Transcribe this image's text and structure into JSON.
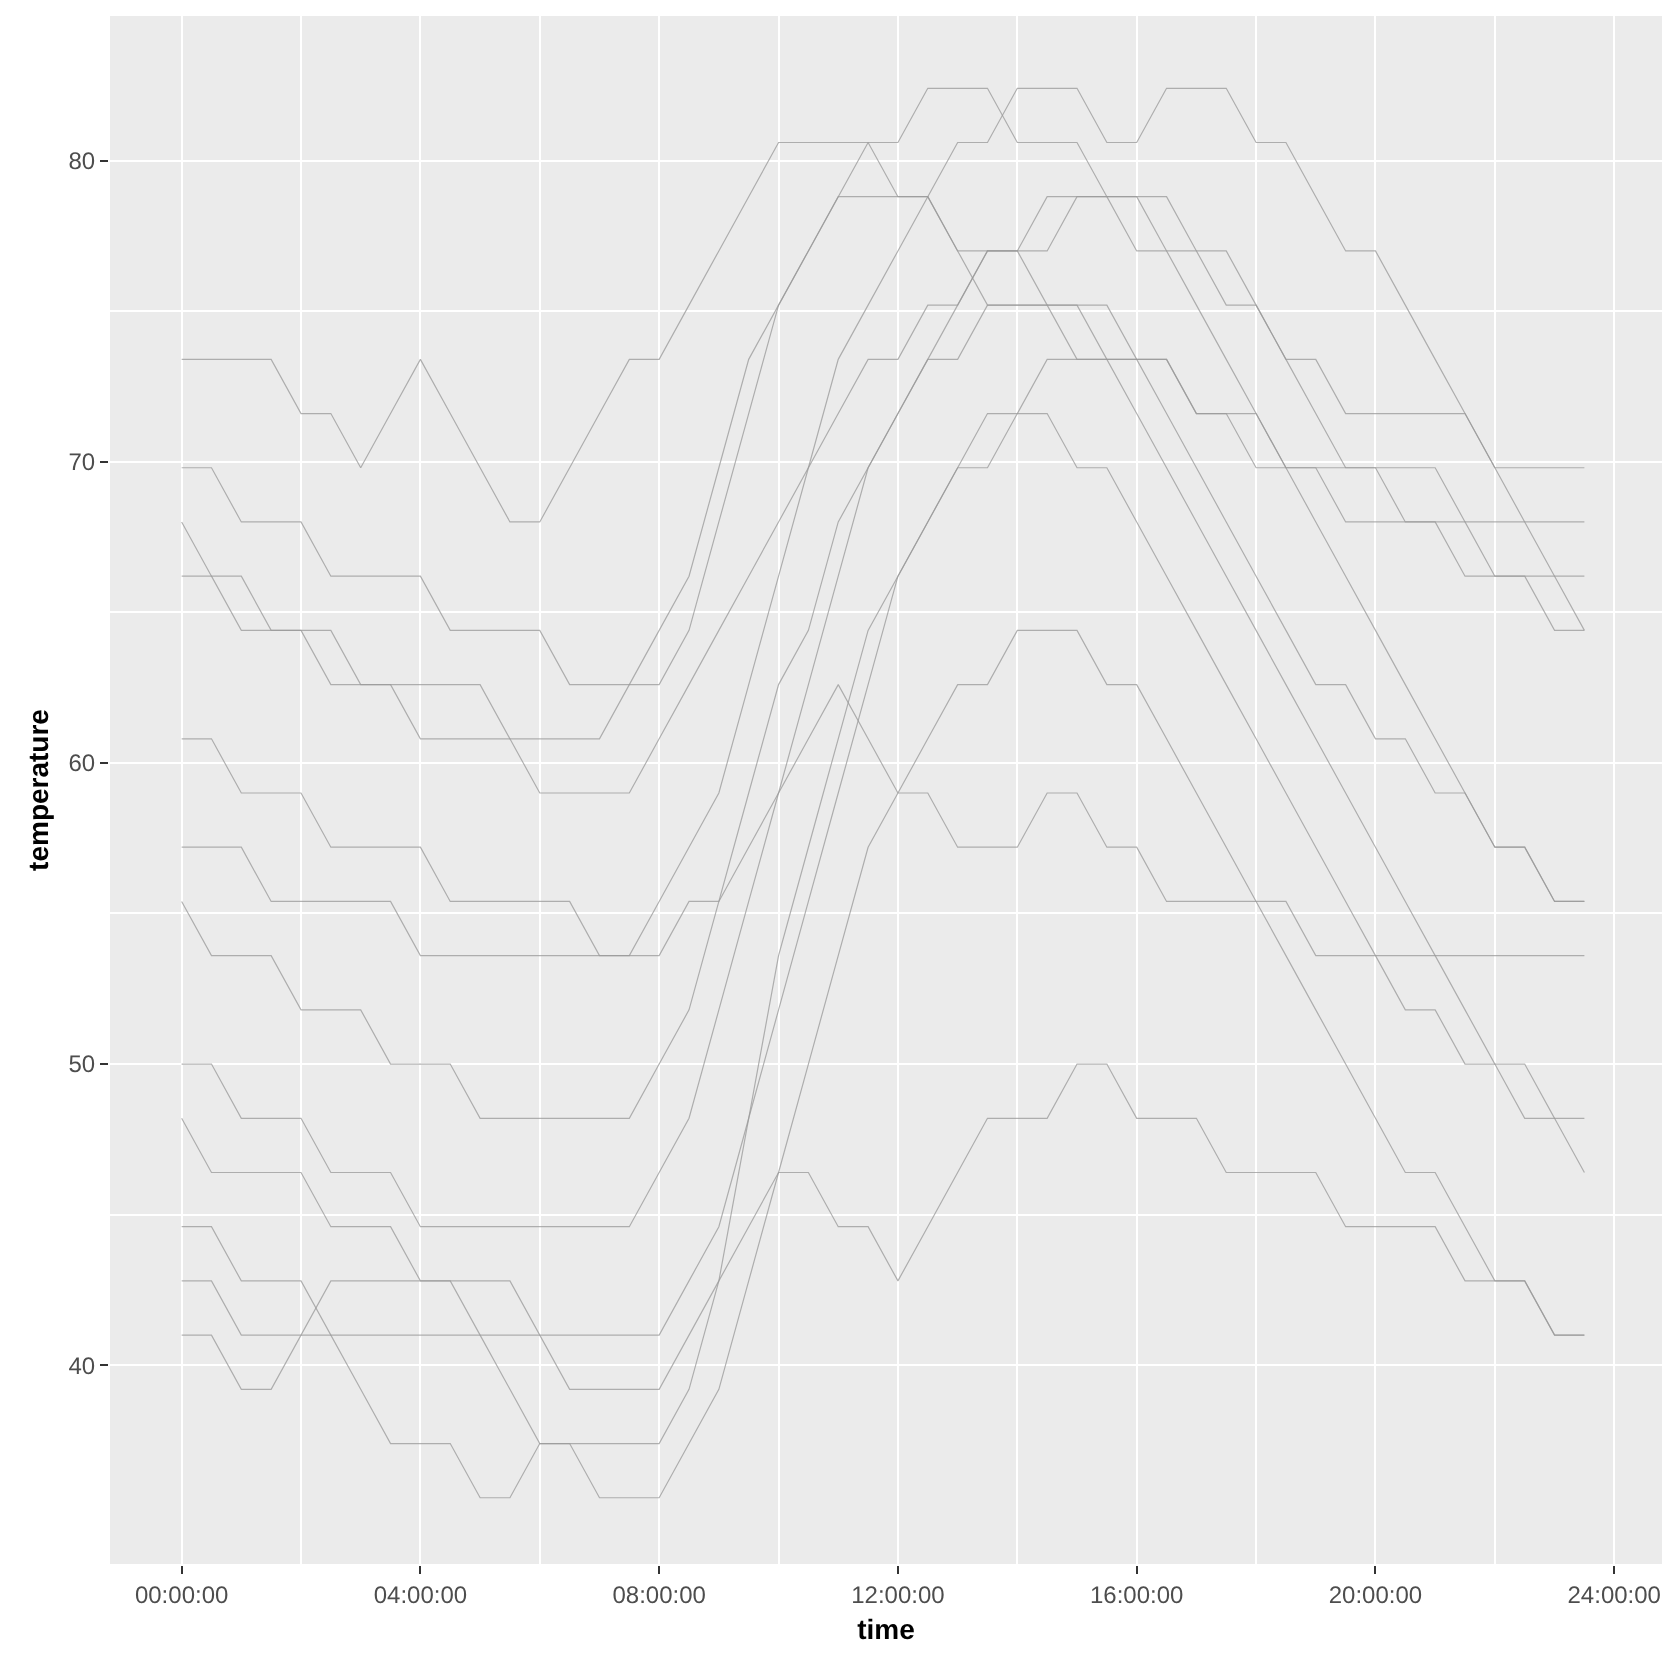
{
  "chart_data": {
    "type": "line",
    "xlabel": "time",
    "ylabel": "temperature",
    "x": [
      0,
      0.5,
      1,
      1.5,
      2,
      2.5,
      3,
      3.5,
      4,
      4.5,
      5,
      5.5,
      6,
      6.5,
      7,
      7.5,
      8,
      8.5,
      9,
      9.5,
      10,
      10.5,
      11,
      11.5,
      12,
      12.5,
      13,
      13.5,
      14,
      14.5,
      15,
      15.5,
      16,
      16.5,
      17,
      17.5,
      18,
      18.5,
      19,
      19.5,
      20,
      20.5,
      21,
      21.5,
      22,
      22.5,
      23,
      23.5
    ],
    "xlim": [
      -1.2,
      24.8
    ],
    "xticks": [
      {
        "value": 0,
        "label": "00:00:00"
      },
      {
        "value": 4,
        "label": "04:00:00"
      },
      {
        "value": 8,
        "label": "08:00:00"
      },
      {
        "value": 12,
        "label": "12:00:00"
      },
      {
        "value": 16,
        "label": "16:00:00"
      },
      {
        "value": 20,
        "label": "20:00:00"
      },
      {
        "value": 24,
        "label": "24:00:00"
      }
    ],
    "ylim": [
      33.4,
      84.8
    ],
    "yticks": [
      40,
      50,
      60,
      70,
      80
    ],
    "grid": true,
    "marker": "none",
    "line_style": "solid",
    "series": [
      {
        "color": "#999999",
        "values": [
          60.8,
          60.8,
          59,
          59,
          59,
          57.2,
          57.2,
          57.2,
          57.2,
          55.4,
          55.4,
          55.4,
          55.4,
          55.4,
          53.6,
          53.6,
          55.4,
          57.2,
          59,
          62.6,
          66.2,
          69.8,
          73.4,
          75.2,
          77,
          78.8,
          80.6,
          80.6,
          82.4,
          82.4,
          82.4,
          80.6,
          80.6,
          82.4,
          82.4,
          82.4,
          80.6,
          80.6,
          78.8,
          77,
          77,
          75.2,
          73.4,
          71.6,
          69.8,
          68,
          66.2,
          64.4
        ]
      },
      {
        "color": "#999999",
        "values": [
          41,
          41,
          39.2,
          39.2,
          41,
          41,
          39.2,
          37.4,
          37.4,
          37.4,
          35.6,
          35.6,
          37.4,
          37.4,
          35.6,
          35.6,
          35.6,
          37.4,
          39.2,
          42.8,
          46.4,
          50,
          53.6,
          57.2,
          59,
          60.8,
          62.6,
          62.6,
          64.4,
          64.4,
          64.4,
          62.6,
          62.6,
          60.8,
          59,
          57.2,
          55.4,
          53.6,
          51.8,
          50,
          48.2,
          46.4,
          46.4,
          44.6,
          42.8,
          42.8,
          41,
          41
        ]
      },
      {
        "color": "#999999",
        "values": [
          50,
          50,
          48.2,
          48.2,
          48.2,
          46.4,
          46.4,
          46.4,
          44.6,
          44.6,
          44.6,
          44.6,
          44.6,
          44.6,
          44.6,
          44.6,
          46.4,
          48.2,
          51.8,
          55.4,
          59,
          62.6,
          66.2,
          69.8,
          71.6,
          73.4,
          75.2,
          77,
          77,
          78.8,
          78.8,
          78.8,
          77,
          77,
          75.2,
          73.4,
          71.6,
          69.8,
          68,
          66.2,
          64.4,
          62.6,
          60.8,
          59,
          57.2,
          57.2,
          55.4,
          55.4
        ]
      },
      {
        "color": "#999999",
        "values": [
          44.6,
          44.6,
          42.8,
          42.8,
          42.8,
          41,
          41,
          41,
          41,
          41,
          41,
          41,
          41,
          39.2,
          39.2,
          39.2,
          39.2,
          41,
          42.8,
          44.6,
          46.4,
          46.4,
          44.6,
          44.6,
          42.8,
          44.6,
          46.4,
          48.2,
          48.2,
          48.2,
          50,
          50,
          48.2,
          48.2,
          48.2,
          46.4,
          46.4,
          46.4,
          46.4,
          44.6,
          44.6,
          44.6,
          44.6,
          42.8,
          42.8,
          42.8,
          41,
          41
        ]
      },
      {
        "color": "#999999",
        "values": [
          73.4,
          73.4,
          73.4,
          73.4,
          71.6,
          71.6,
          69.8,
          71.6,
          73.4,
          71.6,
          69.8,
          68,
          68,
          69.8,
          71.6,
          73.4,
          73.4,
          75.2,
          77,
          78.8,
          80.6,
          80.6,
          80.6,
          80.6,
          78.8,
          78.8,
          77,
          75.2,
          75.2,
          75.2,
          75.2,
          75.2,
          73.4,
          73.4,
          71.6,
          71.6,
          69.8,
          69.8,
          69.8,
          68,
          68,
          68,
          68,
          68,
          66.2,
          66.2,
          64.4,
          64.4
        ]
      },
      {
        "color": "#999999",
        "values": [
          68,
          66.2,
          66.2,
          64.4,
          64.4,
          62.6,
          62.6,
          62.6,
          60.8,
          60.8,
          60.8,
          60.8,
          59,
          59,
          59,
          59,
          60.8,
          62.6,
          64.4,
          66.2,
          68,
          69.8,
          71.6,
          73.4,
          73.4,
          75.2,
          75.2,
          77,
          77,
          77,
          78.8,
          78.8,
          78.8,
          77,
          77,
          75.2,
          75.2,
          73.4,
          73.4,
          71.6,
          71.6,
          71.6,
          71.6,
          71.6,
          69.8,
          69.8,
          69.8,
          69.8
        ]
      },
      {
        "color": "#999999",
        "values": [
          55.4,
          53.6,
          53.6,
          53.6,
          51.8,
          51.8,
          51.8,
          50,
          50,
          50,
          48.2,
          48.2,
          48.2,
          48.2,
          48.2,
          48.2,
          50,
          51.8,
          55.4,
          59,
          62.6,
          64.4,
          68,
          69.8,
          71.6,
          73.4,
          73.4,
          75.2,
          75.2,
          75.2,
          73.4,
          73.4,
          73.4,
          71.6,
          69.8,
          68,
          66.2,
          64.4,
          62.6,
          62.6,
          60.8,
          60.8,
          59,
          59,
          57.2,
          57.2,
          55.4,
          55.4
        ]
      },
      {
        "color": "#999999",
        "values": [
          57.2,
          57.2,
          57.2,
          55.4,
          55.4,
          55.4,
          55.4,
          55.4,
          53.6,
          53.6,
          53.6,
          53.6,
          53.6,
          53.6,
          53.6,
          53.6,
          53.6,
          55.4,
          55.4,
          57.2,
          59,
          60.8,
          62.6,
          60.8,
          59,
          59,
          57.2,
          57.2,
          57.2,
          59,
          59,
          57.2,
          57.2,
          55.4,
          55.4,
          55.4,
          55.4,
          55.4,
          53.6,
          53.6,
          53.6,
          53.6,
          53.6,
          53.6,
          53.6,
          53.6,
          53.6,
          53.6
        ]
      },
      {
        "color": "#999999",
        "values": [
          48.2,
          46.4,
          46.4,
          46.4,
          46.4,
          44.6,
          44.6,
          44.6,
          42.8,
          42.8,
          42.8,
          42.8,
          41,
          41,
          41,
          41,
          41,
          42.8,
          44.6,
          48.2,
          51.8,
          55.4,
          59,
          62.6,
          66.2,
          68,
          69.8,
          71.6,
          71.6,
          73.4,
          73.4,
          73.4,
          71.6,
          69.8,
          68,
          66.2,
          64.4,
          62.6,
          60.8,
          59,
          57.2,
          55.4,
          53.6,
          51.8,
          50,
          50,
          48.2,
          48.2
        ]
      },
      {
        "color": "#999999",
        "values": [
          66.2,
          66.2,
          64.4,
          64.4,
          64.4,
          64.4,
          62.6,
          62.6,
          62.6,
          62.6,
          62.6,
          60.8,
          60.8,
          60.8,
          60.8,
          62.6,
          64.4,
          66.2,
          69.8,
          73.4,
          75.2,
          77,
          78.8,
          80.6,
          80.6,
          82.4,
          82.4,
          82.4,
          80.6,
          80.6,
          80.6,
          78.8,
          78.8,
          78.8,
          77,
          77,
          75.2,
          73.4,
          71.6,
          69.8,
          69.8,
          68,
          68,
          66.2,
          66.2,
          66.2,
          66.2,
          66.2
        ]
      },
      {
        "color": "#999999",
        "values": [
          42.8,
          42.8,
          41,
          41,
          41,
          42.8,
          42.8,
          42.8,
          42.8,
          42.8,
          41,
          39.2,
          37.4,
          37.4,
          37.4,
          37.4,
          37.4,
          39.2,
          42.8,
          48.2,
          53.6,
          57.2,
          60.8,
          64.4,
          66.2,
          68,
          69.8,
          69.8,
          71.6,
          71.6,
          69.8,
          69.8,
          68,
          66.2,
          64.4,
          62.6,
          60.8,
          59,
          57.2,
          55.4,
          53.6,
          51.8,
          51.8,
          50,
          50,
          48.2,
          48.2,
          46.4
        ]
      },
      {
        "color": "#999999",
        "values": [
          69.8,
          69.8,
          68,
          68,
          68,
          66.2,
          66.2,
          66.2,
          66.2,
          64.4,
          64.4,
          64.4,
          64.4,
          62.6,
          62.6,
          62.6,
          62.6,
          64.4,
          68,
          71.6,
          75.2,
          77,
          78.8,
          78.8,
          78.8,
          78.8,
          77,
          77,
          77,
          75.2,
          75.2,
          73.4,
          73.4,
          73.4,
          71.6,
          71.6,
          71.6,
          69.8,
          69.8,
          69.8,
          69.8,
          69.8,
          69.8,
          68,
          68,
          68,
          68,
          68
        ]
      }
    ]
  }
}
